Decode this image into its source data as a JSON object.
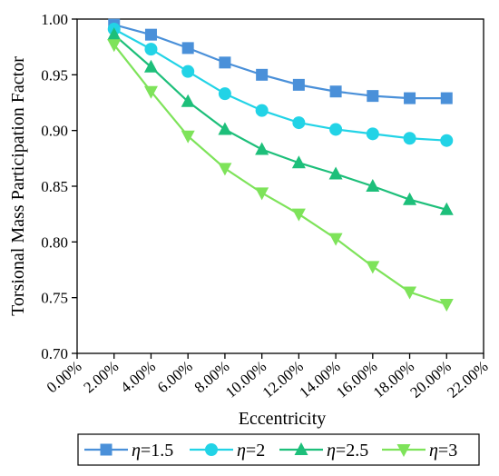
{
  "chart_data": {
    "type": "line",
    "title": "",
    "xlabel": "Eccentricity",
    "ylabel": "Torsional Mass Participation Factor",
    "x_ticks": [
      "0.00%",
      "2.00%",
      "4.00%",
      "6.00%",
      "8.00%",
      "10.00%",
      "12.00%",
      "14.00%",
      "16.00%",
      "18.00%",
      "20.00%",
      "22.00%"
    ],
    "y_ticks": [
      "0.70",
      "0.75",
      "0.80",
      "0.85",
      "0.90",
      "0.95",
      "1.00"
    ],
    "xlim": [
      0,
      22
    ],
    "ylim": [
      0.7,
      1.0
    ],
    "x": [
      2,
      4,
      6,
      8,
      10,
      12,
      14,
      16,
      18,
      20
    ],
    "legend_position": "bottom",
    "grid": false,
    "series": [
      {
        "name": "η=1.5",
        "legend_symbol": "η",
        "legend_value": "=1.5",
        "marker": "square",
        "color": "#4a90d9",
        "values": [
          0.995,
          0.986,
          0.974,
          0.961,
          0.95,
          0.941,
          0.935,
          0.931,
          0.929,
          0.929
        ]
      },
      {
        "name": "η=2",
        "legend_symbol": "η",
        "legend_value": "=2",
        "marker": "circle",
        "color": "#22d3e6",
        "values": [
          0.991,
          0.973,
          0.953,
          0.933,
          0.918,
          0.907,
          0.901,
          0.897,
          0.893,
          0.891
        ]
      },
      {
        "name": "η=2.5",
        "legend_symbol": "η",
        "legend_value": "=2.5",
        "marker": "triangle-up",
        "color": "#1dbf7a",
        "values": [
          0.986,
          0.957,
          0.926,
          0.901,
          0.883,
          0.871,
          0.861,
          0.85,
          0.838,
          0.829
        ]
      },
      {
        "name": "η=3",
        "legend_symbol": "η",
        "legend_value": "=3",
        "marker": "triangle-down",
        "color": "#7ee35a",
        "values": [
          0.977,
          0.935,
          0.895,
          0.866,
          0.844,
          0.825,
          0.803,
          0.778,
          0.755,
          0.744
        ]
      }
    ]
  }
}
